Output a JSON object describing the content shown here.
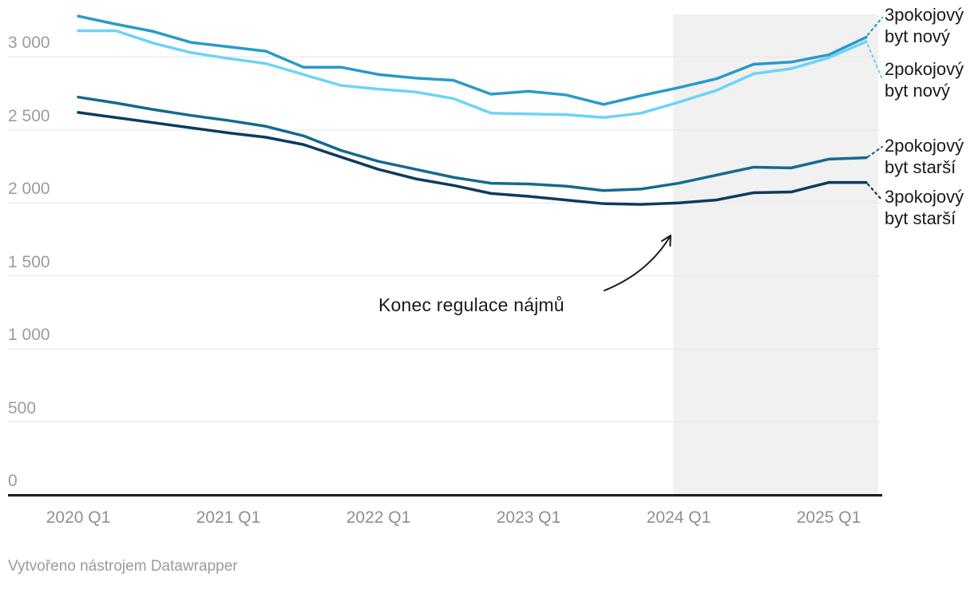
{
  "footer": {
    "credit": "Vytvořeno nástrojem Datawrapper"
  },
  "colors": {
    "background": "#ffffff",
    "gridline": "#e9e9e9",
    "axis_baseline": "#1f1f1f",
    "axis_label_gray": "#9c9c9c",
    "shaded_region": "#f1f1f1",
    "annotation_ink": "#1a1a1a"
  },
  "chart_data": {
    "type": "line",
    "title": "",
    "xlabel": "",
    "ylabel": "",
    "grid": true,
    "legend_position": "right-edge-labels",
    "x": [
      "2020 Q1",
      "2020 Q2",
      "2020 Q3",
      "2020 Q4",
      "2021 Q1",
      "2021 Q2",
      "2021 Q3",
      "2021 Q4",
      "2022 Q1",
      "2022 Q2",
      "2022 Q3",
      "2022 Q4",
      "2023 Q1",
      "2023 Q2",
      "2023 Q3",
      "2023 Q4",
      "2024 Q1",
      "2024 Q2",
      "2024 Q3",
      "2024 Q4",
      "2025 Q1",
      "2025 Q2"
    ],
    "x_axis": {
      "tick_labels": [
        "2020 Q1",
        "2021 Q1",
        "2022 Q1",
        "2023 Q1",
        "2024 Q1",
        "2025 Q1"
      ]
    },
    "y_axis": {
      "tick_labels": [
        "0",
        "500",
        "1 000",
        "1 500",
        "2 000",
        "2 500",
        "3 000"
      ],
      "tick_values": [
        0,
        500,
        1000,
        1500,
        2000,
        2500,
        3000
      ],
      "range": [
        0,
        3400
      ]
    },
    "series": [
      {
        "name": "3pokojový byt nový",
        "short_label": [
          "3pokojový",
          "byt nový"
        ],
        "color": "#299ac7",
        "values": [
          3280,
          3225,
          3175,
          3100,
          3070,
          3040,
          2930,
          2930,
          2880,
          2855,
          2840,
          2745,
          2765,
          2740,
          2675,
          2735,
          2790,
          2850,
          2950,
          2965,
          3015,
          3135
        ]
      },
      {
        "name": "2pokojový byt nový",
        "short_label": [
          "2pokojový",
          "byt nový"
        ],
        "color": "#6dd3f8",
        "values": [
          3180,
          3180,
          3095,
          3030,
          2990,
          2955,
          2880,
          2805,
          2780,
          2760,
          2715,
          2615,
          2610,
          2605,
          2585,
          2615,
          2690,
          2770,
          2885,
          2920,
          2995,
          3105
        ]
      },
      {
        "name": "2pokojový byt starší",
        "short_label": [
          "2pokojový",
          "byt starší"
        ],
        "color": "#17698e",
        "values": [
          2725,
          2685,
          2640,
          2600,
          2565,
          2525,
          2460,
          2360,
          2285,
          2230,
          2175,
          2135,
          2130,
          2115,
          2085,
          2095,
          2135,
          2190,
          2245,
          2240,
          2300,
          2310
        ]
      },
      {
        "name": "3pokojový byt starší",
        "short_label": [
          "3pokojový",
          "byt starší"
        ],
        "color": "#0d3b5c",
        "values": [
          2620,
          2585,
          2550,
          2515,
          2480,
          2450,
          2400,
          2315,
          2230,
          2165,
          2120,
          2065,
          2045,
          2020,
          1995,
          1990,
          2000,
          2020,
          2070,
          2075,
          2140,
          2140
        ]
      }
    ],
    "shaded_region": {
      "from_x": "2024 Q1",
      "to_x": "2025 Q2",
      "color": "#f1f1f1"
    },
    "annotation": {
      "text": "Konec regulace nájmů",
      "arrow_points_to": "start of shaded region (2024 Q1)"
    }
  }
}
